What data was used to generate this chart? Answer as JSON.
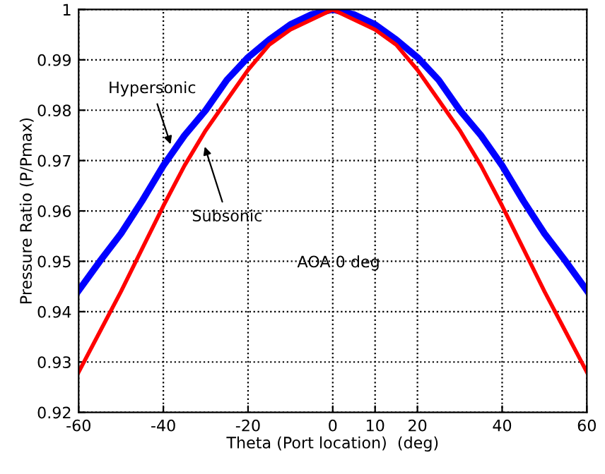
{
  "chart_data": {
    "type": "line",
    "xlabel": "Theta (Port location)  (deg)",
    "ylabel": "Pressure Ratio (P/Pmax)",
    "x": [
      -60,
      -55,
      -50,
      -45,
      -40,
      -35,
      -30,
      -25,
      -20,
      -15,
      -10,
      -5,
      0,
      5,
      10,
      15,
      20,
      25,
      30,
      35,
      40,
      45,
      50,
      55,
      60
    ],
    "series": [
      {
        "color": "#0000ff",
        "values": [
          0.9442,
          0.95,
          0.9555,
          0.962,
          0.969,
          0.975,
          0.98,
          0.986,
          0.9905,
          0.994,
          0.997,
          0.999,
          1.0,
          0.999,
          0.997,
          0.994,
          0.9905,
          0.986,
          0.98,
          0.975,
          0.969,
          0.962,
          0.9555,
          0.95,
          0.9442
        ]
      },
      {
        "color": "#ff0000",
        "values": [
          0.928,
          0.936,
          0.944,
          0.9525,
          0.961,
          0.969,
          0.976,
          0.982,
          0.988,
          0.993,
          0.996,
          0.998,
          1.0,
          0.998,
          0.996,
          0.993,
          0.988,
          0.982,
          0.976,
          0.969,
          0.961,
          0.9525,
          0.944,
          0.936,
          0.928
        ]
      }
    ],
    "annotations": [
      {
        "text": "Hypersonic",
        "x": -38,
        "y": 0.9725
      },
      {
        "text": "Subsonic",
        "x": -30.5,
        "y": 0.9735
      },
      "AOA 0 deg"
    ],
    "xlim": [
      -60,
      60
    ],
    "xticks": [
      -60,
      -40,
      -20,
      0,
      10,
      20,
      40,
      60
    ],
    "ylim": [
      0.92,
      1
    ],
    "yticks": [
      {
        "value": 0.92,
        "label": "0.92"
      },
      {
        "value": 0.93,
        "label": "0.93"
      },
      {
        "value": 0.94,
        "label": "0.94"
      },
      {
        "value": 0.95,
        "label": "0.95"
      },
      {
        "value": 0.96,
        "label": "0.96"
      },
      {
        "value": 0.97,
        "label": "0.97"
      },
      {
        "value": 0.98,
        "label": "0.98"
      },
      {
        "value": 0.99,
        "label": "0.99"
      },
      1
    ],
    "grid": true,
    "line_style": "solid",
    "marker": "none",
    "legend": false
  }
}
